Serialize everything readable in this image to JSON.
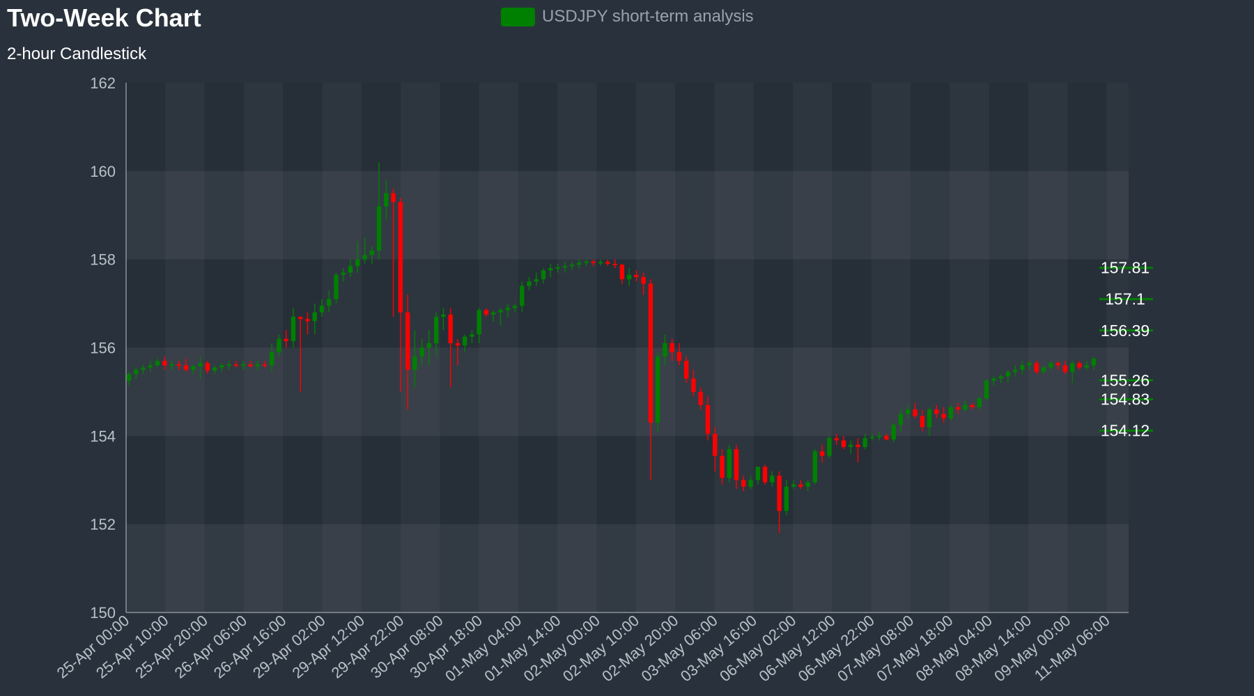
{
  "chart_data": {
    "type": "candlestick",
    "title": "Two-Week Chart",
    "subtitle": "2-hour Candlestick",
    "legend": {
      "label": "USDJPY short-term analysis",
      "color": "#008000",
      "placement": "top-center"
    },
    "colors": {
      "up": "#008000",
      "down": "#ff0000",
      "background": "#29323c",
      "axis": "#8a939c",
      "tick_text": "#b9c0c8"
    },
    "y_axis": {
      "min": 150,
      "max": 162,
      "ticks": [
        150,
        152,
        154,
        156,
        158,
        160,
        162
      ]
    },
    "x_axis": {
      "start": "25-Apr 00:00",
      "tick_labels": [
        "25-Apr 00:00",
        "25-Apr 10:00",
        "25-Apr 20:00",
        "26-Apr 06:00",
        "26-Apr 16:00",
        "29-Apr 02:00",
        "29-Apr 12:00",
        "29-Apr 22:00",
        "30-Apr 08:00",
        "30-Apr 18:00",
        "01-May 04:00",
        "01-May 14:00",
        "02-May 00:00",
        "02-May 10:00",
        "02-May 20:00",
        "03-May 06:00",
        "03-May 16:00",
        "06-May 02:00",
        "06-May 12:00",
        "06-May 22:00",
        "07-May 08:00",
        "07-May 18:00",
        "08-May 04:00",
        "08-May 14:00",
        "09-May 00:00",
        "11-May 06:00"
      ]
    },
    "levels": [
      {
        "value": 157.81,
        "label": "157.81"
      },
      {
        "value": 157.1,
        "label": "157.1"
      },
      {
        "value": 156.39,
        "label": "156.39"
      },
      {
        "value": 155.26,
        "label": "155.26"
      },
      {
        "value": 154.83,
        "label": "154.83"
      },
      {
        "value": 154.12,
        "label": "154.12"
      }
    ],
    "candles": [
      [
        155.25,
        155.45,
        155.15,
        155.4
      ],
      [
        155.4,
        155.55,
        155.3,
        155.5
      ],
      [
        155.5,
        155.62,
        155.4,
        155.55
      ],
      [
        155.55,
        155.7,
        155.45,
        155.6
      ],
      [
        155.6,
        155.75,
        155.55,
        155.7
      ],
      [
        155.7,
        155.8,
        155.5,
        155.6
      ],
      [
        155.6,
        155.7,
        155.5,
        155.62
      ],
      [
        155.62,
        155.7,
        155.5,
        155.6
      ],
      [
        155.6,
        155.75,
        155.45,
        155.5
      ],
      [
        155.5,
        155.62,
        155.4,
        155.58
      ],
      [
        155.58,
        155.8,
        155.3,
        155.65
      ],
      [
        155.65,
        155.7,
        155.4,
        155.48
      ],
      [
        155.48,
        155.6,
        155.4,
        155.55
      ],
      [
        155.55,
        155.65,
        155.45,
        155.6
      ],
      [
        155.6,
        155.7,
        155.5,
        155.62
      ],
      [
        155.62,
        155.7,
        155.55,
        155.6
      ],
      [
        155.6,
        155.7,
        155.5,
        155.62
      ],
      [
        155.62,
        155.7,
        155.55,
        155.58
      ],
      [
        155.58,
        155.7,
        155.5,
        155.62
      ],
      [
        155.62,
        155.7,
        155.55,
        155.6
      ],
      [
        155.6,
        156.1,
        155.45,
        155.9
      ],
      [
        155.9,
        156.3,
        155.8,
        156.2
      ],
      [
        156.2,
        156.4,
        156.0,
        156.15
      ],
      [
        156.15,
        156.9,
        156.0,
        156.7
      ],
      [
        156.7,
        156.7,
        155.0,
        156.65
      ],
      [
        156.65,
        156.8,
        156.3,
        156.6
      ],
      [
        156.6,
        157.0,
        156.3,
        156.8
      ],
      [
        156.8,
        157.1,
        156.7,
        156.95
      ],
      [
        156.95,
        157.3,
        156.8,
        157.1
      ],
      [
        157.1,
        157.7,
        157.0,
        157.65
      ],
      [
        157.65,
        157.8,
        157.5,
        157.7
      ],
      [
        157.7,
        158.0,
        157.6,
        157.85
      ],
      [
        157.85,
        158.4,
        157.7,
        158.0
      ],
      [
        158.0,
        158.5,
        157.9,
        158.1
      ],
      [
        158.1,
        158.3,
        157.9,
        158.2
      ],
      [
        158.2,
        160.2,
        158.0,
        159.2
      ],
      [
        159.2,
        159.8,
        158.9,
        159.5
      ],
      [
        159.5,
        159.6,
        156.7,
        159.3
      ],
      [
        159.3,
        159.4,
        155.0,
        156.8
      ],
      [
        156.8,
        157.2,
        154.6,
        155.5
      ],
      [
        155.5,
        156.4,
        155.1,
        155.8
      ],
      [
        155.8,
        156.2,
        155.6,
        156.0
      ],
      [
        156.0,
        156.4,
        155.6,
        156.1
      ],
      [
        156.1,
        156.8,
        155.8,
        156.7
      ],
      [
        156.7,
        156.9,
        156.4,
        156.75
      ],
      [
        156.75,
        156.9,
        155.1,
        156.1
      ],
      [
        156.1,
        156.2,
        155.6,
        156.05
      ],
      [
        156.05,
        156.3,
        155.9,
        156.25
      ],
      [
        156.25,
        156.4,
        156.1,
        156.3
      ],
      [
        156.3,
        156.9,
        156.1,
        156.85
      ],
      [
        156.85,
        156.9,
        156.7,
        156.75
      ],
      [
        156.75,
        156.85,
        156.6,
        156.8
      ],
      [
        156.8,
        156.9,
        156.5,
        156.85
      ],
      [
        156.85,
        157.0,
        156.7,
        156.9
      ],
      [
        156.9,
        157.0,
        156.8,
        156.95
      ],
      [
        156.95,
        157.5,
        156.8,
        157.4
      ],
      [
        157.4,
        157.6,
        157.3,
        157.5
      ],
      [
        157.5,
        157.7,
        157.4,
        157.55
      ],
      [
        157.55,
        157.8,
        157.45,
        157.75
      ],
      [
        157.75,
        157.9,
        157.6,
        157.8
      ],
      [
        157.8,
        157.9,
        157.7,
        157.82
      ],
      [
        157.82,
        157.95,
        157.7,
        157.85
      ],
      [
        157.85,
        157.95,
        157.75,
        157.88
      ],
      [
        157.88,
        158.0,
        157.8,
        157.92
      ],
      [
        157.92,
        158.0,
        157.85,
        157.95
      ],
      [
        157.95,
        158.0,
        157.85,
        157.93
      ],
      [
        157.93,
        158.0,
        157.85,
        157.94
      ],
      [
        157.94,
        158.0,
        157.85,
        157.9
      ],
      [
        157.9,
        158.0,
        157.8,
        157.88
      ],
      [
        157.88,
        157.9,
        157.45,
        157.55
      ],
      [
        157.55,
        157.8,
        157.4,
        157.65
      ],
      [
        157.65,
        157.75,
        157.5,
        157.6
      ],
      [
        157.6,
        157.7,
        157.2,
        157.45
      ],
      [
        157.45,
        157.55,
        153.0,
        154.3
      ],
      [
        154.3,
        155.9,
        154.1,
        155.8
      ],
      [
        155.8,
        156.3,
        155.6,
        156.1
      ],
      [
        156.1,
        156.2,
        155.7,
        155.9
      ],
      [
        155.9,
        156.1,
        155.6,
        155.7
      ],
      [
        155.7,
        155.8,
        155.2,
        155.3
      ],
      [
        155.3,
        155.5,
        154.9,
        155.0
      ],
      [
        155.0,
        155.1,
        154.6,
        154.7
      ],
      [
        154.7,
        154.9,
        153.9,
        154.05
      ],
      [
        154.05,
        154.2,
        153.2,
        153.55
      ],
      [
        153.55,
        153.7,
        152.9,
        153.05
      ],
      [
        153.05,
        153.8,
        152.95,
        153.7
      ],
      [
        153.7,
        153.8,
        152.8,
        153.0
      ],
      [
        153.0,
        153.1,
        152.75,
        152.85
      ],
      [
        152.85,
        153.1,
        152.8,
        153.0
      ],
      [
        153.0,
        153.3,
        152.9,
        153.3
      ],
      [
        153.3,
        153.35,
        152.9,
        152.95
      ],
      [
        152.95,
        153.2,
        152.85,
        153.1
      ],
      [
        153.1,
        153.2,
        151.8,
        152.3
      ],
      [
        152.3,
        153.0,
        152.2,
        152.85
      ],
      [
        152.85,
        153.0,
        152.8,
        152.9
      ],
      [
        152.9,
        153.0,
        152.8,
        152.85
      ],
      [
        152.85,
        153.0,
        152.75,
        152.95
      ],
      [
        152.95,
        153.7,
        152.9,
        153.65
      ],
      [
        153.65,
        153.8,
        153.4,
        153.55
      ],
      [
        153.55,
        154.0,
        153.5,
        153.95
      ],
      [
        153.95,
        154.05,
        153.8,
        153.9
      ],
      [
        153.9,
        154.0,
        153.7,
        153.75
      ],
      [
        153.75,
        153.9,
        153.6,
        153.8
      ],
      [
        153.8,
        153.95,
        153.4,
        153.75
      ],
      [
        153.75,
        154.05,
        153.7,
        153.95
      ],
      [
        153.95,
        154.05,
        153.9,
        153.98
      ],
      [
        153.98,
        154.1,
        153.9,
        154.0
      ],
      [
        154.0,
        154.05,
        153.9,
        153.92
      ],
      [
        153.92,
        154.3,
        153.85,
        154.25
      ],
      [
        154.25,
        154.6,
        154.1,
        154.5
      ],
      [
        154.5,
        154.7,
        154.4,
        154.6
      ],
      [
        154.6,
        154.75,
        154.4,
        154.45
      ],
      [
        154.45,
        154.6,
        154.1,
        154.2
      ],
      [
        154.2,
        154.65,
        154.0,
        154.6
      ],
      [
        154.6,
        154.7,
        154.4,
        154.5
      ],
      [
        154.5,
        154.65,
        154.3,
        154.4
      ],
      [
        154.4,
        154.7,
        154.35,
        154.65
      ],
      [
        154.65,
        154.75,
        154.5,
        154.6
      ],
      [
        154.6,
        154.8,
        154.55,
        154.7
      ],
      [
        154.7,
        154.75,
        154.6,
        154.65
      ],
      [
        154.65,
        154.9,
        154.6,
        154.85
      ],
      [
        154.85,
        155.3,
        154.8,
        155.25
      ],
      [
        155.25,
        155.35,
        155.15,
        155.3
      ],
      [
        155.3,
        155.4,
        155.2,
        155.35
      ],
      [
        155.35,
        155.5,
        155.2,
        155.45
      ],
      [
        155.45,
        155.6,
        155.35,
        155.5
      ],
      [
        155.5,
        155.7,
        155.4,
        155.6
      ],
      [
        155.6,
        155.7,
        155.5,
        155.65
      ],
      [
        155.65,
        155.7,
        155.4,
        155.45
      ],
      [
        155.45,
        155.6,
        155.4,
        155.55
      ],
      [
        155.55,
        155.7,
        155.5,
        155.65
      ],
      [
        155.65,
        155.7,
        155.5,
        155.6
      ],
      [
        155.6,
        155.7,
        155.4,
        155.45
      ],
      [
        155.45,
        155.7,
        155.2,
        155.65
      ],
      [
        155.65,
        155.7,
        155.5,
        155.55
      ],
      [
        155.55,
        155.7,
        155.5,
        155.6
      ],
      [
        155.6,
        155.8,
        155.5,
        155.75
      ]
    ]
  }
}
